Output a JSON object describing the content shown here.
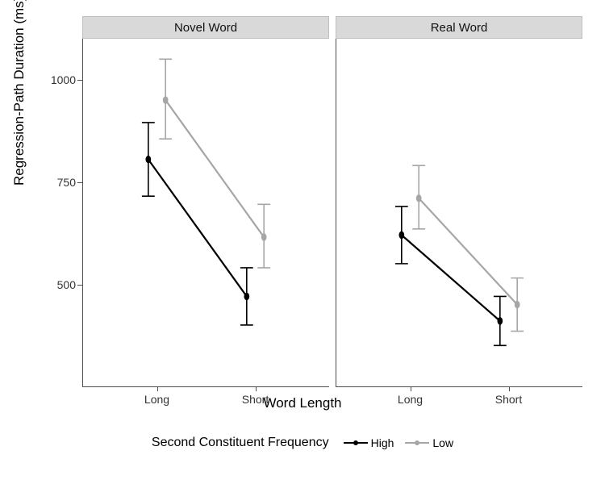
{
  "chart": {
    "type": "faceted-line-errorbar",
    "y_axis": {
      "title": "Regression-Path Duration (ms)",
      "min": 250,
      "max": 1100,
      "ticks": [
        500,
        750,
        1000
      ],
      "label_fontsize": 14,
      "title_fontsize": 17
    },
    "x_axis": {
      "title": "Word Length",
      "categories": [
        "Long",
        "Short"
      ],
      "label_fontsize": 14,
      "title_fontsize": 17
    },
    "colors": {
      "high": "#000000",
      "low": "#a6a6a6",
      "panel_header_bg": "#d9d9d9",
      "panel_header_border": "#bfbfbf",
      "axis_line": "#4d4d4d",
      "background": "#ffffff",
      "text": "#000000",
      "tick_text": "#333333"
    },
    "line_width": 2.2,
    "marker_radius": 3.5,
    "errorbar_cap_width": 14,
    "errorbar_line_width": 1.6,
    "x_offset": 0.035,
    "facets": [
      {
        "title": "Novel Word",
        "series": [
          {
            "name": "High",
            "color_key": "high",
            "points": [
              {
                "x": "Long",
                "y": 805,
                "lo": 715,
                "hi": 895
              },
              {
                "x": "Short",
                "y": 470,
                "lo": 400,
                "hi": 540
              }
            ]
          },
          {
            "name": "Low",
            "color_key": "low",
            "points": [
              {
                "x": "Long",
                "y": 950,
                "lo": 855,
                "hi": 1050
              },
              {
                "x": "Short",
                "y": 615,
                "lo": 540,
                "hi": 695
              }
            ]
          }
        ]
      },
      {
        "title": "Real Word",
        "series": [
          {
            "name": "High",
            "color_key": "high",
            "points": [
              {
                "x": "Long",
                "y": 620,
                "lo": 550,
                "hi": 690
              },
              {
                "x": "Short",
                "y": 410,
                "lo": 350,
                "hi": 470
              }
            ]
          },
          {
            "name": "Low",
            "color_key": "low",
            "points": [
              {
                "x": "Long",
                "y": 710,
                "lo": 635,
                "hi": 790
              },
              {
                "x": "Short",
                "y": 450,
                "lo": 385,
                "hi": 515
              }
            ]
          }
        ]
      }
    ],
    "legend": {
      "title": "Second Constituent Frequency",
      "title_fontsize": 16,
      "items": [
        {
          "label": "High",
          "color_key": "high"
        },
        {
          "label": "Low",
          "color_key": "low"
        }
      ]
    }
  }
}
